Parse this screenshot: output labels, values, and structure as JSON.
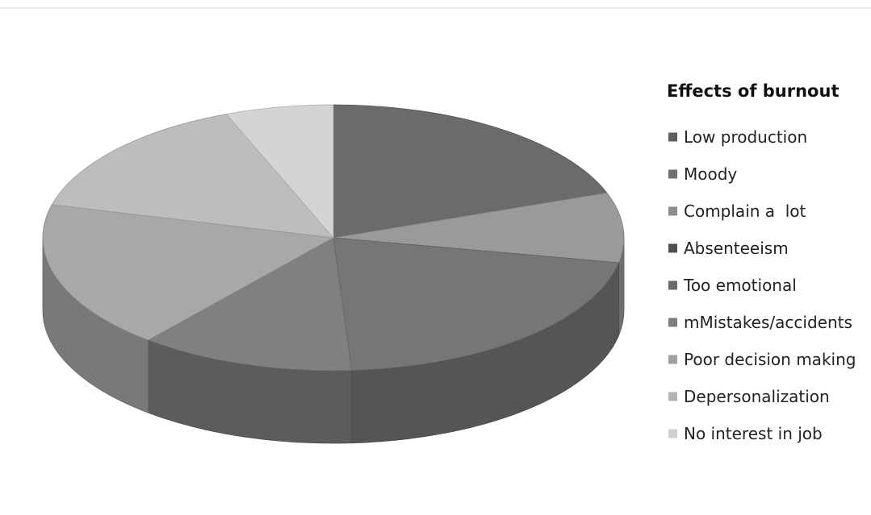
{
  "chart_data": {
    "type": "pie",
    "style": "3d",
    "legend_title": "Effects of burnout",
    "legend_position": "right",
    "categories": [
      "Low production",
      "Moody",
      "Complain a  lot",
      "Absenteeism",
      "Too emotional",
      "mMistakes/accidents",
      "Poor decision making",
      "Depersonalization",
      "No interest in job"
    ],
    "values": [
      19.5,
      8.5,
      0,
      21,
      12,
      0,
      18,
      15,
      6
    ],
    "colors": [
      "#6b6b6b",
      "#9a9a9a",
      "#b0b0b0",
      "#767676",
      "#808080",
      "#909090",
      "#a8a8a8",
      "#bdbdbd",
      "#d4d4d4"
    ],
    "legend_colors": [
      "#5f5f5f",
      "#707070",
      "#8c8c8c",
      "#505050",
      "#6a6a6a",
      "#7d7d7d",
      "#a0a0a0",
      "#b3b3b3",
      "#cfcfcf"
    ]
  }
}
